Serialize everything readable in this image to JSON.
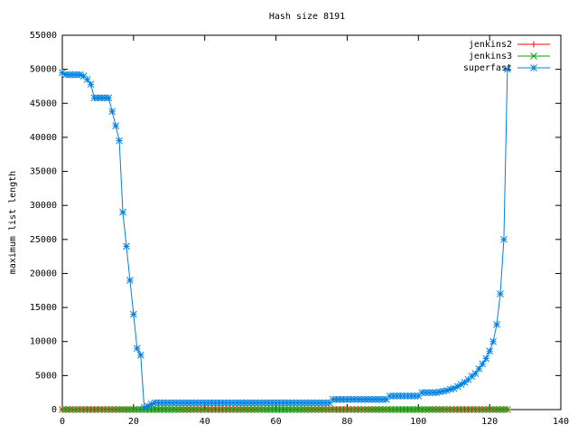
{
  "chart_data": {
    "type": "line",
    "title": "Hash size 8191",
    "y_label": "maximum list length",
    "xlim": [
      0,
      140
    ],
    "xticks": [
      0,
      20,
      40,
      60,
      80,
      100,
      120,
      140
    ],
    "ylim": [
      0,
      55000
    ],
    "yticks": [
      0,
      5000,
      10000,
      15000,
      20000,
      25000,
      30000,
      35000,
      40000,
      45000,
      50000,
      55000
    ],
    "legend": "top-right",
    "x": [
      0,
      1,
      2,
      3,
      4,
      5,
      6,
      7,
      8,
      9,
      10,
      11,
      12,
      13,
      14,
      15,
      16,
      17,
      18,
      19,
      20,
      21,
      22,
      23,
      24,
      25,
      26,
      27,
      28,
      29,
      30,
      31,
      32,
      33,
      34,
      35,
      36,
      37,
      38,
      39,
      40,
      41,
      42,
      43,
      44,
      45,
      46,
      47,
      48,
      49,
      50,
      51,
      52,
      53,
      54,
      55,
      56,
      57,
      58,
      59,
      60,
      61,
      62,
      63,
      64,
      65,
      66,
      67,
      68,
      69,
      70,
      71,
      72,
      73,
      74,
      75,
      76,
      77,
      78,
      79,
      80,
      81,
      82,
      83,
      84,
      85,
      86,
      87,
      88,
      89,
      90,
      91,
      92,
      93,
      94,
      95,
      96,
      97,
      98,
      99,
      100,
      101,
      102,
      103,
      104,
      105,
      106,
      107,
      108,
      109,
      110,
      111,
      112,
      113,
      114,
      115,
      116,
      117,
      118,
      119,
      120,
      121,
      122,
      123,
      124,
      125
    ],
    "series": [
      {
        "name": "jenkins2",
        "color": "#ff0000",
        "marker": "plus",
        "values": [
          10,
          10,
          10,
          10,
          10,
          10,
          10,
          10,
          10,
          10,
          10,
          10,
          10,
          10,
          10,
          10,
          10,
          10,
          10,
          10,
          10,
          10,
          10,
          10,
          10,
          10,
          10,
          10,
          10,
          10,
          10,
          10,
          10,
          10,
          10,
          10,
          10,
          10,
          10,
          10,
          10,
          10,
          10,
          10,
          10,
          10,
          10,
          10,
          10,
          10,
          10,
          10,
          10,
          10,
          10,
          10,
          10,
          10,
          10,
          10,
          10,
          10,
          10,
          10,
          10,
          10,
          10,
          10,
          10,
          10,
          10,
          10,
          10,
          10,
          10,
          10,
          10,
          10,
          10,
          10,
          10,
          10,
          10,
          10,
          10,
          10,
          10,
          10,
          10,
          10,
          10,
          10,
          10,
          10,
          10,
          10,
          10,
          10,
          10,
          10,
          10,
          10,
          10,
          10,
          10,
          10,
          10,
          10,
          10,
          10,
          10,
          10,
          10,
          10,
          10,
          10,
          10,
          10,
          10,
          10,
          10,
          10,
          10,
          10,
          10,
          10
        ]
      },
      {
        "name": "jenkins3",
        "color": "#00a000",
        "marker": "cross",
        "values": [
          10,
          10,
          10,
          10,
          10,
          10,
          10,
          10,
          10,
          10,
          10,
          10,
          10,
          10,
          10,
          10,
          10,
          10,
          10,
          10,
          10,
          10,
          10,
          10,
          10,
          10,
          10,
          10,
          10,
          10,
          10,
          10,
          10,
          10,
          10,
          10,
          10,
          10,
          10,
          10,
          10,
          10,
          10,
          10,
          10,
          10,
          10,
          10,
          10,
          10,
          10,
          10,
          10,
          10,
          10,
          10,
          10,
          10,
          10,
          10,
          10,
          10,
          10,
          10,
          10,
          10,
          10,
          10,
          10,
          10,
          10,
          10,
          10,
          10,
          10,
          10,
          10,
          10,
          10,
          10,
          10,
          10,
          10,
          10,
          10,
          10,
          10,
          10,
          10,
          10,
          10,
          10,
          10,
          10,
          10,
          10,
          10,
          10,
          10,
          10,
          10,
          10,
          10,
          10,
          10,
          10,
          10,
          10,
          10,
          10,
          10,
          10,
          10,
          10,
          10,
          10,
          10,
          10,
          10,
          10,
          10,
          10,
          10,
          10,
          10,
          10
        ]
      },
      {
        "name": "superfast",
        "color": "#0080e0",
        "marker": "star",
        "values": [
          49500,
          49200,
          49200,
          49200,
          49200,
          49200,
          49000,
          48500,
          47800,
          45800,
          45800,
          45800,
          45800,
          45800,
          43800,
          41700,
          39500,
          29000,
          24000,
          19000,
          14000,
          9000,
          8000,
          300,
          500,
          800,
          1000,
          1000,
          1000,
          1000,
          1000,
          1000,
          1000,
          1000,
          1000,
          1000,
          1000,
          1000,
          1000,
          1000,
          1000,
          1000,
          1000,
          1000,
          1000,
          1000,
          1000,
          1000,
          1000,
          1000,
          1000,
          1000,
          1000,
          1000,
          1000,
          1000,
          1000,
          1000,
          1000,
          1000,
          1000,
          1000,
          1000,
          1000,
          1000,
          1000,
          1000,
          1000,
          1000,
          1000,
          1000,
          1000,
          1000,
          1000,
          1000,
          1000,
          1500,
          1500,
          1500,
          1500,
          1500,
          1500,
          1500,
          1500,
          1500,
          1500,
          1500,
          1500,
          1500,
          1500,
          1500,
          1500,
          2000,
          2000,
          2000,
          2000,
          2000,
          2000,
          2000,
          2000,
          2000,
          2500,
          2500,
          2500,
          2500,
          2500,
          2600,
          2700,
          2800,
          3000,
          3100,
          3400,
          3700,
          4000,
          4400,
          4900,
          5300,
          6000,
          6700,
          7500,
          8600,
          10000,
          12500,
          17000,
          25000,
          50000
        ]
      }
    ]
  }
}
